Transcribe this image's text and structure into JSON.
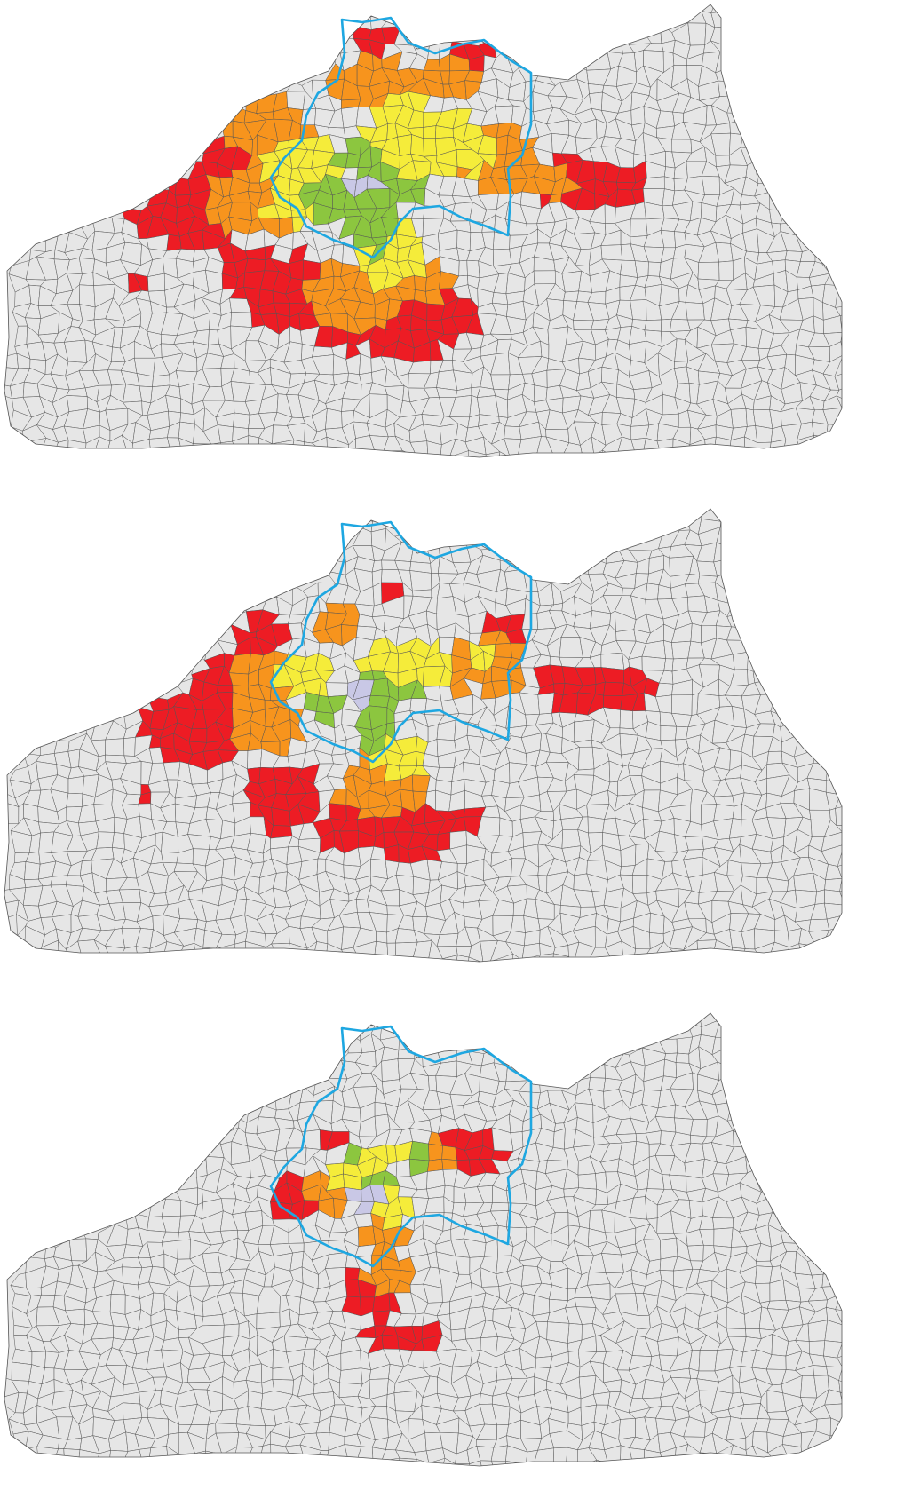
{
  "figure": {
    "panel_count": 3,
    "panels": [
      {
        "id": "map-1",
        "extent": "large"
      },
      {
        "id": "map-2",
        "extent": "medium"
      },
      {
        "id": "map-3",
        "extent": "small"
      }
    ]
  },
  "colors": {
    "background": "#ffffff",
    "region_fill": "#e6e6e6",
    "municipality_border": "#555555",
    "core_city": "#c9c8e6",
    "inner_ring": "#8cc63f",
    "middle_ring": "#f5ec3a",
    "outer_ring": "#f7941d",
    "fringe": "#ed1c24",
    "boundary_outline": "#1ea7e1"
  },
  "legend": []
}
